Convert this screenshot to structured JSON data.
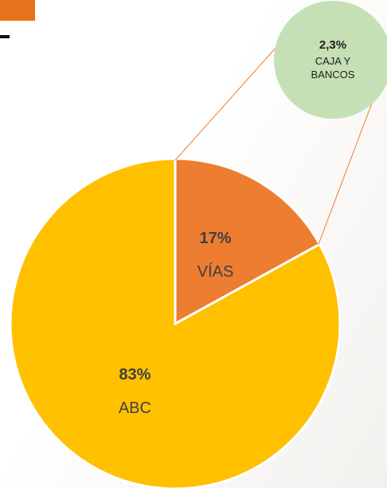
{
  "chart_data": {
    "type": "pie",
    "categories": [
      "VÍAS",
      "ABC"
    ],
    "values": [
      17,
      83
    ],
    "value_labels": [
      "17%",
      "83%"
    ],
    "colors": [
      "#ed7d31",
      "#ffc000"
    ],
    "callout": {
      "name": "CAJA Y BANCOS",
      "value": 2.3,
      "value_label": "2,3%",
      "color": "#c5e0b4"
    }
  }
}
